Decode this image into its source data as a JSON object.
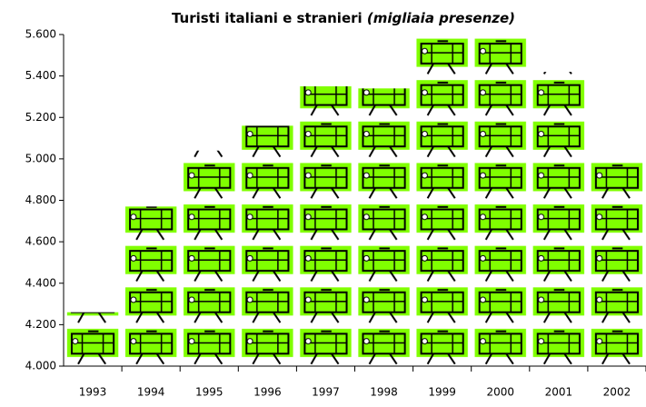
{
  "chart_data": {
    "type": "pictograph",
    "title": "Turisti italiani e stranieri",
    "subtitle": "(migliaia presenze)",
    "categories": [
      "1993",
      "1994",
      "1995",
      "1996",
      "1997",
      "1998",
      "1999",
      "2000",
      "2001",
      "2002"
    ],
    "values": [
      4260,
      4770,
      5040,
      5160,
      5350,
      5340,
      5600,
      5600,
      5420,
      4990
    ],
    "color": "#80ff00",
    "ylim": [
      4000,
      5600
    ],
    "yticks": [
      {
        "value": 4000,
        "label": "4.000"
      },
      {
        "value": 4200,
        "label": "4.200"
      },
      {
        "value": 4400,
        "label": "4.400"
      },
      {
        "value": 4600,
        "label": "4.600"
      },
      {
        "value": 4800,
        "label": "4.800"
      },
      {
        "value": 5000,
        "label": "5.000"
      },
      {
        "value": 5200,
        "label": "5.200"
      },
      {
        "value": 5400,
        "label": "5.400"
      },
      {
        "value": 5600,
        "label": "5.600"
      }
    ],
    "grid": false
  }
}
